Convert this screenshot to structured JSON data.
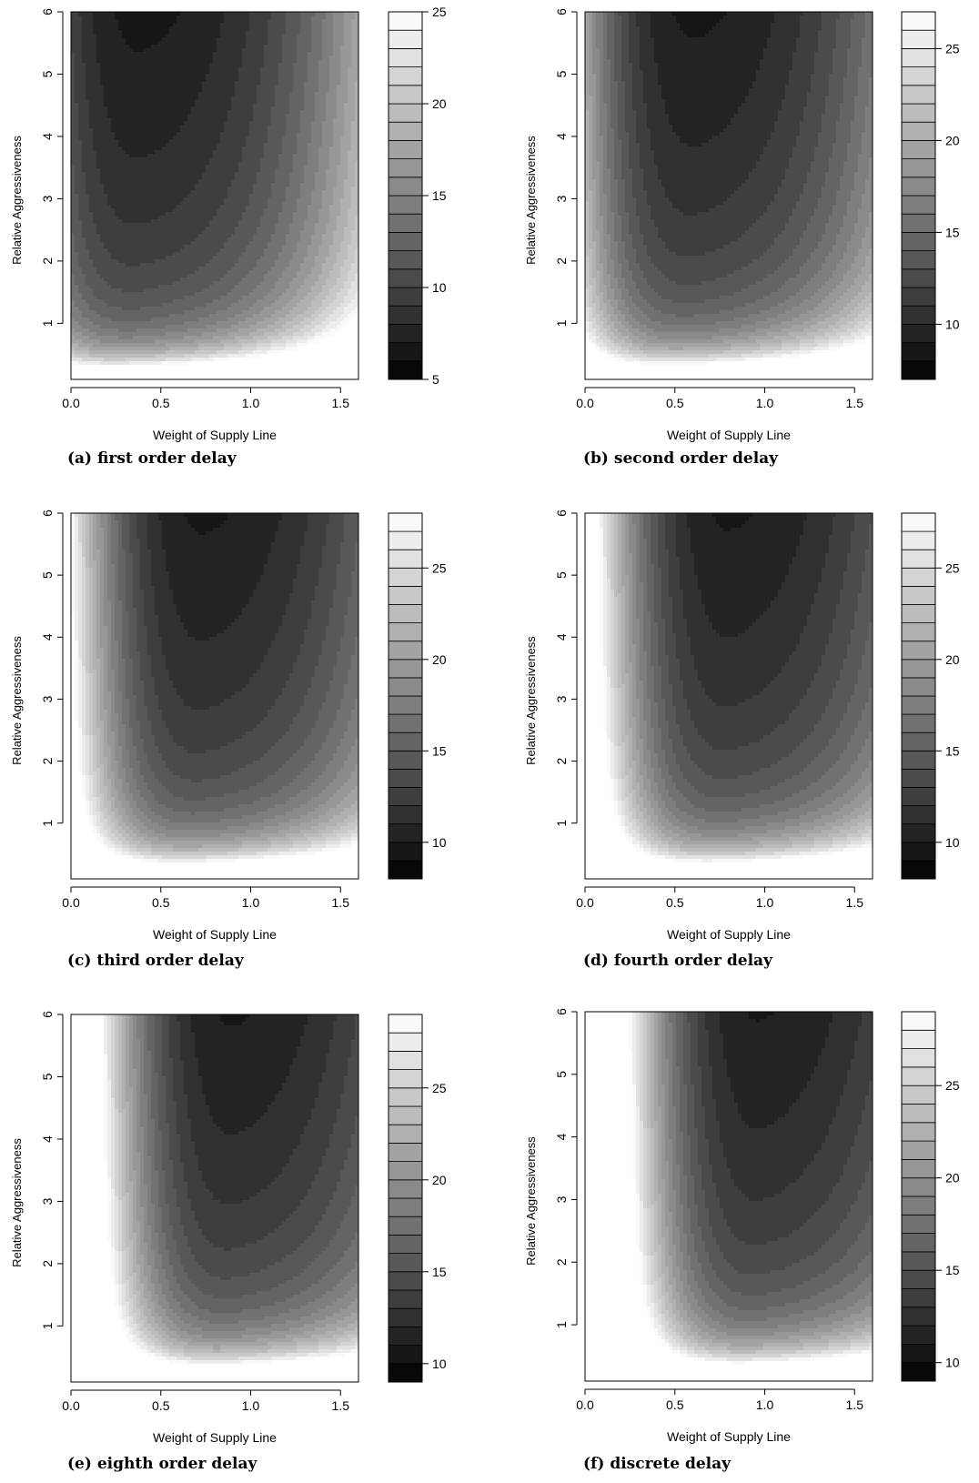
{
  "chart_data": [
    {
      "type": "heatmap",
      "caption": "(a) first order delay",
      "xlabel": "Weight of Supply Line",
      "ylabel": "Relative Aggressiveness",
      "xlim": [
        0,
        1.6
      ],
      "ylim": [
        0.1,
        6
      ],
      "x_ticks": [
        "0.0",
        "0.5",
        "1.0",
        "1.5"
      ],
      "y_ticks": [
        "1",
        "2",
        "3",
        "4",
        "5",
        "6"
      ],
      "colorbar": {
        "min": 5,
        "max": 25,
        "levels": 20,
        "ticks": [
          "5",
          "10",
          "15",
          "20",
          "25"
        ]
      },
      "min_location": {
        "x": 0.4,
        "y": 6
      },
      "contours": [
        {
          "level": 6,
          "x_left": 0.22,
          "x_right": 0.57,
          "y_bottom": 4.6
        },
        {
          "level": 7,
          "x_left": 0.16,
          "x_right": 0.64,
          "y_bottom": 3.4
        },
        {
          "level": 8,
          "x_left": 0.11,
          "x_right": 0.7,
          "y_bottom": 2.6
        }
      ]
    },
    {
      "type": "heatmap",
      "caption": "(b) second order delay",
      "xlabel": "Weight of Supply Line",
      "ylabel": "Relative Aggressiveness",
      "xlim": [
        0,
        1.6
      ],
      "ylim": [
        0.1,
        6
      ],
      "x_ticks": [
        "0.0",
        "0.5",
        "1.0",
        "1.5"
      ],
      "y_ticks": [
        "1",
        "2",
        "3",
        "4",
        "5",
        "6"
      ],
      "colorbar": {
        "min": 7,
        "max": 27,
        "levels": 20,
        "ticks": [
          "10",
          "15",
          "20",
          "25"
        ]
      },
      "min_location": {
        "x": 0.62,
        "y": 6
      },
      "contours": [
        {
          "level": 8,
          "x_left": 0.43,
          "x_right": 0.8,
          "y_bottom": 4.4
        },
        {
          "level": 9,
          "x_left": 0.37,
          "x_right": 0.88,
          "y_bottom": 3.1
        }
      ]
    },
    {
      "type": "heatmap",
      "caption": "(c) third order delay",
      "xlabel": "Weight of Supply Line",
      "ylabel": "Relative Aggressiveness",
      "xlim": [
        0,
        1.6
      ],
      "ylim": [
        0.1,
        6
      ],
      "x_ticks": [
        "0.0",
        "0.5",
        "1.0",
        "1.5"
      ],
      "y_ticks": [
        "1",
        "2",
        "3",
        "4",
        "5",
        "6"
      ],
      "colorbar": {
        "min": 8,
        "max": 28,
        "levels": 20,
        "ticks": [
          "10",
          "15",
          "20",
          "25"
        ]
      },
      "min_location": {
        "x": 0.74,
        "y": 6
      },
      "contours": [
        {
          "level": 9,
          "x_left": 0.52,
          "x_right": 0.95,
          "y_bottom": 3.9
        },
        {
          "level": 10,
          "x_left": 0.46,
          "x_right": 1.03,
          "y_bottom": 2.7
        }
      ]
    },
    {
      "type": "heatmap",
      "caption": "(d) fourth order delay",
      "xlabel": "Weight of Supply Line",
      "ylabel": "Relative Aggressiveness",
      "xlim": [
        0,
        1.6
      ],
      "ylim": [
        0.1,
        6
      ],
      "x_ticks": [
        "0.0",
        "0.5",
        "1.0",
        "1.5"
      ],
      "y_ticks": [
        "1",
        "2",
        "3",
        "4",
        "5",
        "6"
      ],
      "colorbar": {
        "min": 8,
        "max": 28,
        "levels": 20,
        "ticks": [
          "10",
          "15",
          "20",
          "25"
        ]
      },
      "min_location": {
        "x": 0.81,
        "y": 6
      },
      "contours": [
        {
          "level": 9,
          "x_left": 0.66,
          "x_right": 0.94,
          "y_bottom": 4.7
        },
        {
          "level": 10,
          "x_left": 0.58,
          "x_right": 1.02,
          "y_bottom": 2.9
        }
      ]
    },
    {
      "type": "heatmap",
      "caption": "(e) eighth order delay",
      "xlabel": "Weight of Supply Line",
      "ylabel": "Relative Aggressiveness",
      "xlim": [
        0,
        1.6
      ],
      "ylim": [
        0.1,
        6
      ],
      "x_ticks": [
        "0.0",
        "0.5",
        "1.0",
        "1.5"
      ],
      "y_ticks": [
        "1",
        "2",
        "3",
        "4",
        "5",
        "6"
      ],
      "colorbar": {
        "min": 9,
        "max": 29,
        "levels": 20,
        "ticks": [
          "10",
          "15",
          "20",
          "25"
        ]
      },
      "min_location": {
        "x": 0.9,
        "y": 6
      },
      "contours": [
        {
          "level": 10,
          "x_left": 0.69,
          "x_right": 1.09,
          "y_bottom": 3.5
        },
        {
          "level": 11,
          "x_left": 0.63,
          "x_right": 1.17,
          "y_bottom": 2.3
        }
      ]
    },
    {
      "type": "heatmap",
      "caption": "(f) discrete delay",
      "xlabel": "Weight of Supply Line",
      "ylabel": "Relative Aggressiveness",
      "xlim": [
        0,
        1.6
      ],
      "ylim": [
        0.1,
        6
      ],
      "x_ticks": [
        "0.0",
        "0.5",
        "1.0",
        "1.5"
      ],
      "y_ticks": [
        "1",
        "2",
        "3",
        "4",
        "5",
        "6"
      ],
      "colorbar": {
        "min": 9,
        "max": 29,
        "levels": 20,
        "ticks": [
          "10",
          "15",
          "20",
          "25"
        ]
      },
      "min_location": {
        "x": 0.97,
        "y": 6
      },
      "contours": [
        {
          "level": 10,
          "x_left": 0.87,
          "x_right": 1.06,
          "y_bottom": 3.8
        },
        {
          "level": 11,
          "x_left": 0.78,
          "x_right": 1.14,
          "y_bottom": 2.4
        }
      ]
    }
  ]
}
